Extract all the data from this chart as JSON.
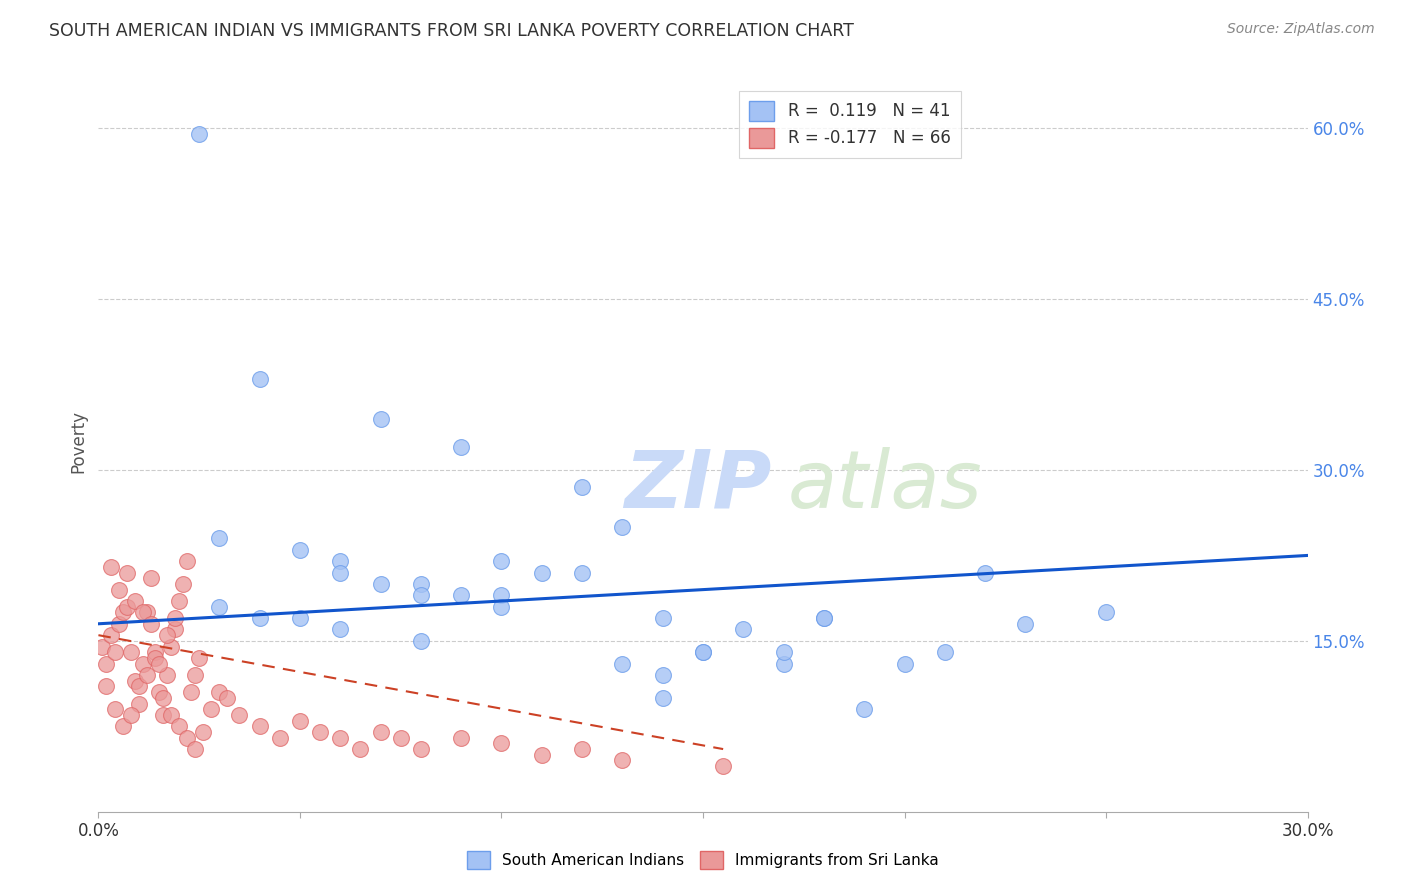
{
  "title": "SOUTH AMERICAN INDIAN VS IMMIGRANTS FROM SRI LANKA POVERTY CORRELATION CHART",
  "source": "Source: ZipAtlas.com",
  "ylabel": "Poverty",
  "xlim": [
    0.0,
    0.3
  ],
  "ylim": [
    0.0,
    0.65
  ],
  "yticks_right": [
    0.15,
    0.3,
    0.45,
    0.6
  ],
  "ytick_labels_right": [
    "15.0%",
    "30.0%",
    "45.0%",
    "60.0%"
  ],
  "color_blue": "#a4c2f4",
  "color_pink": "#ea9999",
  "color_blue_edge": "#6d9eeb",
  "color_pink_edge": "#e06666",
  "color_blue_line": "#1155cc",
  "color_pink_line": "#cc4125",
  "watermark_zip": "#c9daf8",
  "watermark_atlas": "#b6d7a8",
  "blue_line_x0": 0.0,
  "blue_line_y0": 0.165,
  "blue_line_x1": 0.3,
  "blue_line_y1": 0.225,
  "pink_line_x0": 0.0,
  "pink_line_y0": 0.155,
  "pink_line_x1": 0.155,
  "pink_line_y1": 0.055,
  "blue_x": [
    0.025,
    0.04,
    0.07,
    0.09,
    0.12,
    0.03,
    0.05,
    0.06,
    0.08,
    0.1,
    0.11,
    0.13,
    0.04,
    0.06,
    0.08,
    0.1,
    0.13,
    0.15,
    0.17,
    0.19,
    0.14,
    0.16,
    0.17,
    0.18,
    0.22,
    0.25,
    0.2,
    0.15,
    0.12,
    0.09,
    0.07,
    0.05,
    0.03,
    0.06,
    0.08,
    0.1,
    0.14,
    0.18,
    0.21,
    0.23,
    0.14
  ],
  "blue_y": [
    0.595,
    0.38,
    0.345,
    0.32,
    0.285,
    0.24,
    0.23,
    0.22,
    0.2,
    0.19,
    0.21,
    0.25,
    0.17,
    0.21,
    0.19,
    0.22,
    0.13,
    0.14,
    0.13,
    0.09,
    0.17,
    0.16,
    0.14,
    0.17,
    0.21,
    0.175,
    0.13,
    0.14,
    0.21,
    0.19,
    0.2,
    0.17,
    0.18,
    0.16,
    0.15,
    0.18,
    0.12,
    0.17,
    0.14,
    0.165,
    0.1
  ],
  "pink_x": [
    0.001,
    0.002,
    0.003,
    0.004,
    0.005,
    0.006,
    0.007,
    0.008,
    0.009,
    0.01,
    0.011,
    0.012,
    0.013,
    0.014,
    0.015,
    0.016,
    0.017,
    0.018,
    0.019,
    0.02,
    0.021,
    0.022,
    0.023,
    0.024,
    0.025,
    0.002,
    0.004,
    0.006,
    0.008,
    0.01,
    0.012,
    0.014,
    0.016,
    0.018,
    0.02,
    0.022,
    0.024,
    0.026,
    0.028,
    0.03,
    0.032,
    0.035,
    0.04,
    0.045,
    0.05,
    0.055,
    0.06,
    0.065,
    0.07,
    0.075,
    0.08,
    0.09,
    0.1,
    0.11,
    0.12,
    0.13,
    0.003,
    0.005,
    0.007,
    0.009,
    0.011,
    0.013,
    0.015,
    0.017,
    0.019,
    0.155
  ],
  "pink_y": [
    0.145,
    0.13,
    0.155,
    0.14,
    0.165,
    0.175,
    0.18,
    0.14,
    0.115,
    0.095,
    0.13,
    0.175,
    0.205,
    0.14,
    0.105,
    0.085,
    0.12,
    0.145,
    0.16,
    0.185,
    0.2,
    0.22,
    0.105,
    0.12,
    0.135,
    0.11,
    0.09,
    0.075,
    0.085,
    0.11,
    0.12,
    0.135,
    0.1,
    0.085,
    0.075,
    0.065,
    0.055,
    0.07,
    0.09,
    0.105,
    0.1,
    0.085,
    0.075,
    0.065,
    0.08,
    0.07,
    0.065,
    0.055,
    0.07,
    0.065,
    0.055,
    0.065,
    0.06,
    0.05,
    0.055,
    0.045,
    0.215,
    0.195,
    0.21,
    0.185,
    0.175,
    0.165,
    0.13,
    0.155,
    0.17,
    0.04
  ]
}
